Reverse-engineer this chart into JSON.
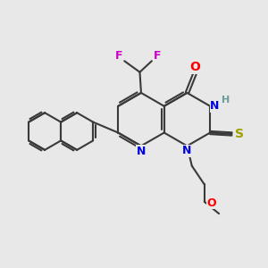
{
  "bg_color": "#e8e8e8",
  "bond_color": "#3a3a3a",
  "bond_lw": 1.5,
  "figsize": [
    3.0,
    3.0
  ],
  "dpi": 100,
  "colors": {
    "O": "#ff0000",
    "S": "#a0a000",
    "N": "#0000dd",
    "F": "#cc00cc",
    "H": "#6a9a9a",
    "C": "#3a3a3a"
  },
  "font_size": 9
}
